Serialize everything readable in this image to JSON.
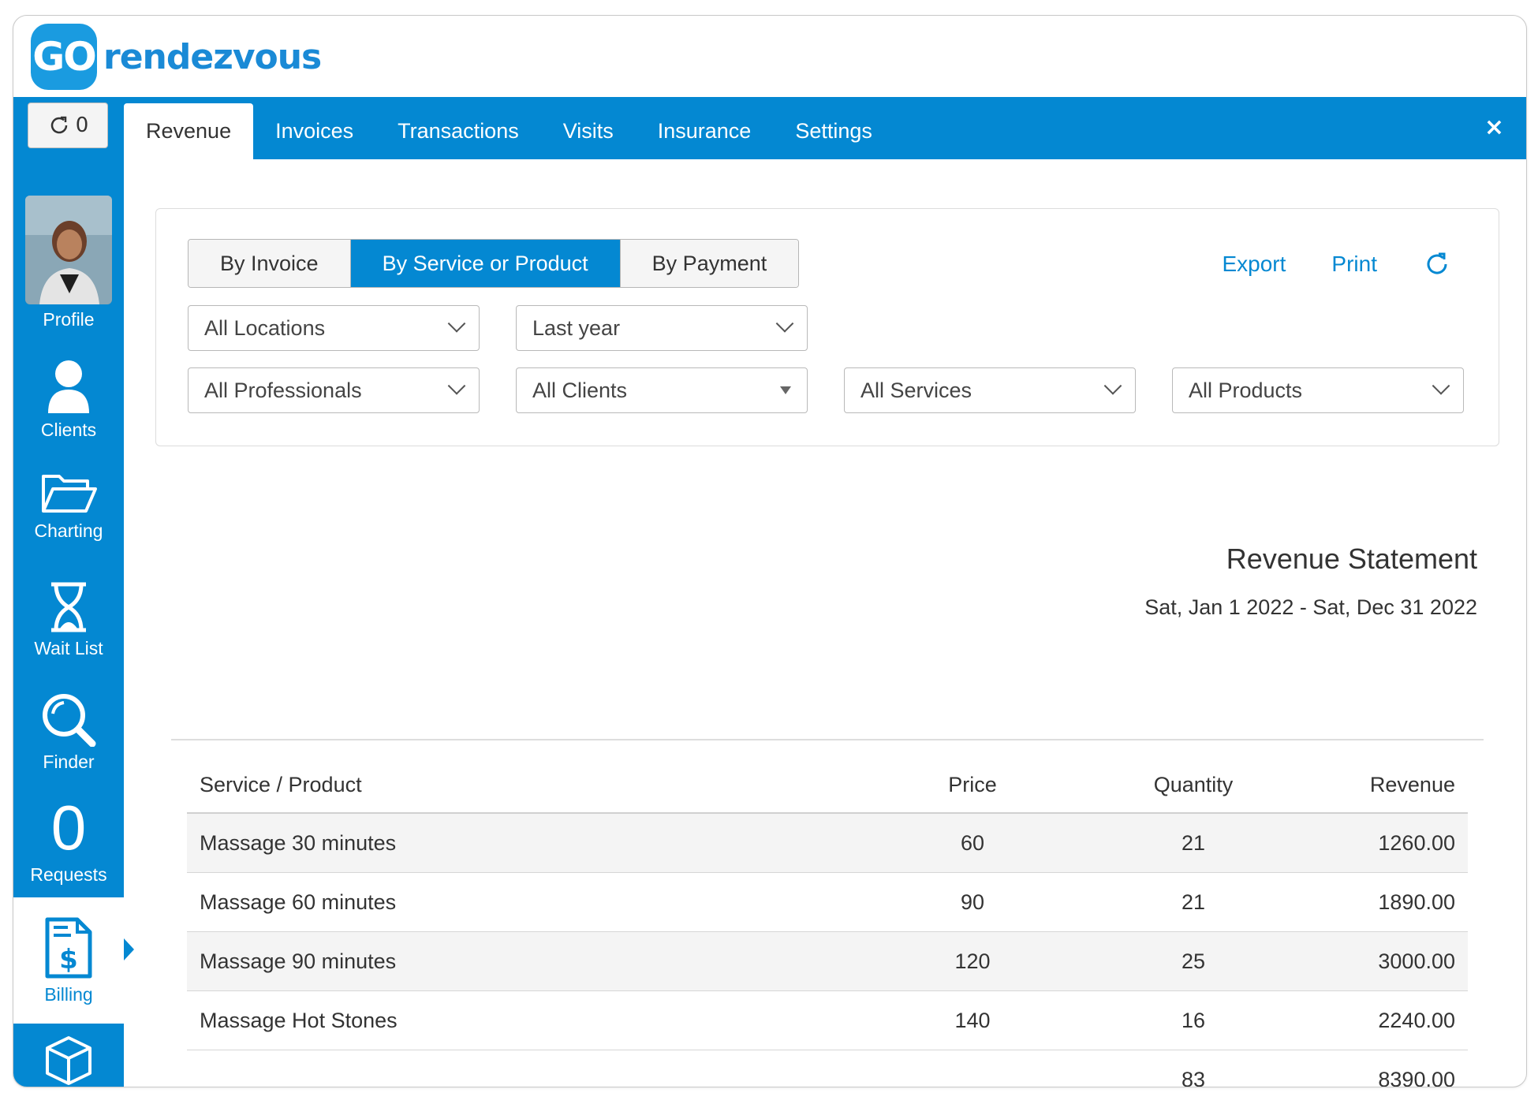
{
  "app": {
    "logo_mark": "GO",
    "logo_text": "rendezvous"
  },
  "refresh_counter": "0",
  "tabs": [
    {
      "label": "Revenue",
      "active": true
    },
    {
      "label": "Invoices"
    },
    {
      "label": "Transactions"
    },
    {
      "label": "Visits"
    },
    {
      "label": "Insurance"
    },
    {
      "label": "Settings"
    }
  ],
  "close_label": "×",
  "sidebar": {
    "items": [
      {
        "label": "Profile",
        "icon": "avatar"
      },
      {
        "label": "Clients",
        "icon": "person-icon"
      },
      {
        "label": "Charting",
        "icon": "folder-open-icon"
      },
      {
        "label": "Wait List",
        "icon": "hourglass-icon"
      },
      {
        "label": "Finder",
        "icon": "magnifier-icon"
      },
      {
        "label": "Requests",
        "count": "0"
      },
      {
        "label": "Billing",
        "icon": "invoice-dollar-icon",
        "active": true
      },
      {
        "label": "",
        "icon": "box-icon"
      }
    ]
  },
  "report_type": {
    "options": [
      "By Invoice",
      "By Service or Product",
      "By Payment"
    ],
    "selected": "By Service or Product"
  },
  "actions": {
    "export": "Export",
    "print": "Print"
  },
  "filters": {
    "location": "All Locations",
    "period": "Last year",
    "professional": "All Professionals",
    "client": "All Clients",
    "service": "All Services",
    "product": "All Products"
  },
  "statement": {
    "title": "Revenue Statement",
    "range": "Sat, Jan 1 2022 - Sat, Dec 31 2022"
  },
  "table": {
    "headers": [
      "Service / Product",
      "Price",
      "Quantity",
      "Revenue"
    ],
    "rows": [
      [
        "Massage 30 minutes",
        "60",
        "21",
        "1260.00"
      ],
      [
        "Massage 60 minutes",
        "90",
        "21",
        "1890.00"
      ],
      [
        "Massage 90 minutes",
        "120",
        "25",
        "3000.00"
      ],
      [
        "Massage Hot Stones",
        "140",
        "16",
        "2240.00"
      ]
    ],
    "total": [
      "",
      "",
      "83",
      "8390.00"
    ]
  },
  "colors": {
    "primary": "#0488d2",
    "logo": "#1a9be0"
  }
}
